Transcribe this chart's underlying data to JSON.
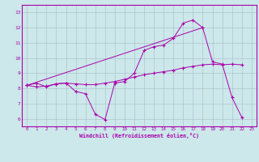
{
  "xlabel": "Windchill (Refroidissement éolien,°C)",
  "xlim": [
    -0.5,
    23.5
  ],
  "ylim": [
    5.5,
    13.5
  ],
  "xticks": [
    0,
    1,
    2,
    3,
    4,
    5,
    6,
    7,
    8,
    9,
    10,
    11,
    12,
    13,
    14,
    15,
    16,
    17,
    18,
    19,
    20,
    21,
    22,
    23
  ],
  "yticks": [
    6,
    7,
    8,
    9,
    10,
    11,
    12,
    13
  ],
  "bg_color": "#cce8ea",
  "grid_color": "#aabbcc",
  "line_color": "#aa00aa",
  "line1_x": [
    0,
    1,
    2,
    3,
    4,
    5,
    6,
    7,
    8,
    9,
    10,
    11,
    12,
    13,
    14,
    15,
    16,
    17,
    18,
    19,
    20,
    21,
    22
  ],
  "line1_y": [
    8.2,
    8.35,
    8.1,
    8.3,
    8.35,
    8.3,
    8.25,
    8.25,
    8.35,
    8.45,
    8.6,
    8.75,
    8.9,
    9.0,
    9.1,
    9.2,
    9.35,
    9.45,
    9.55,
    9.6,
    9.55,
    9.6,
    9.55
  ],
  "line2_x": [
    0,
    1,
    2,
    3,
    4,
    5,
    6,
    7,
    8,
    9,
    10,
    11,
    12,
    13,
    14,
    15,
    16,
    17,
    18
  ],
  "line2_y": [
    8.2,
    8.1,
    8.15,
    8.3,
    8.35,
    7.8,
    7.65,
    6.3,
    5.95,
    8.35,
    8.45,
    9.0,
    10.5,
    10.75,
    10.85,
    11.3,
    12.3,
    12.5,
    12.0
  ],
  "line3_x": [
    0,
    18,
    19,
    20,
    21,
    22
  ],
  "line3_y": [
    8.2,
    12.0,
    9.75,
    9.6,
    7.4,
    6.1
  ]
}
